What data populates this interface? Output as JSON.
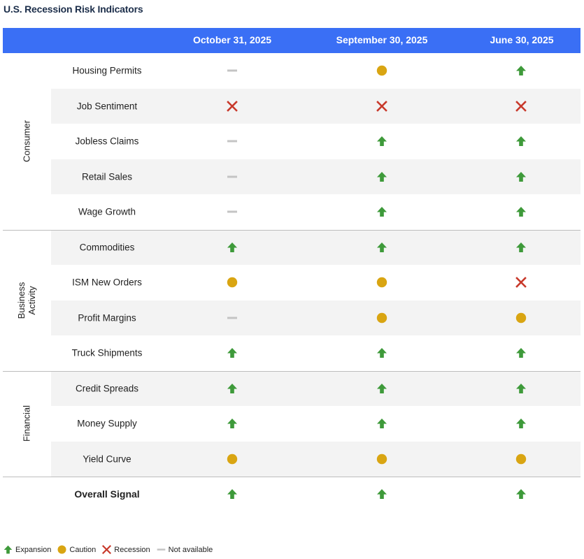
{
  "title": "U.S. Recession Risk Indicators",
  "columns": [
    "October 31, 2025",
    "September 30, 2025",
    "June 30, 2025"
  ],
  "colors": {
    "header": "#3a6ff5",
    "expansion": "#3e9a3a",
    "caution": "#d9a512",
    "recession": "#c8392b",
    "not_available": "#c4c4c4",
    "stripe": "#f3f3f3"
  },
  "chart_data": {
    "type": "table",
    "title": "U.S. Recession Risk Indicators",
    "columns": [
      "October 31, 2025",
      "September 30, 2025",
      "June 30, 2025"
    ],
    "groups": [
      {
        "category": "Consumer",
        "rows": [
          {
            "label": "Housing Permits",
            "values": [
              "na",
              "caution",
              "expansion"
            ]
          },
          {
            "label": "Job Sentiment",
            "values": [
              "recession",
              "recession",
              "recession"
            ]
          },
          {
            "label": "Jobless Claims",
            "values": [
              "na",
              "expansion",
              "expansion"
            ]
          },
          {
            "label": "Retail Sales",
            "values": [
              "na",
              "expansion",
              "expansion"
            ]
          },
          {
            "label": "Wage Growth",
            "values": [
              "na",
              "expansion",
              "expansion"
            ]
          }
        ]
      },
      {
        "category": "Business Activity",
        "rows": [
          {
            "label": "Commodities",
            "values": [
              "expansion",
              "expansion",
              "expansion"
            ]
          },
          {
            "label": "ISM New Orders",
            "values": [
              "caution",
              "caution",
              "recession"
            ]
          },
          {
            "label": "Profit Margins",
            "values": [
              "na",
              "caution",
              "caution"
            ]
          },
          {
            "label": "Truck Shipments",
            "values": [
              "expansion",
              "expansion",
              "expansion"
            ]
          }
        ]
      },
      {
        "category": "Financial",
        "rows": [
          {
            "label": "Credit Spreads",
            "values": [
              "expansion",
              "expansion",
              "expansion"
            ]
          },
          {
            "label": "Money Supply",
            "values": [
              "expansion",
              "expansion",
              "expansion"
            ]
          },
          {
            "label": "Yield Curve",
            "values": [
              "caution",
              "caution",
              "caution"
            ]
          }
        ]
      }
    ],
    "overall": {
      "label": "Overall Signal",
      "values": [
        "expansion",
        "expansion",
        "expansion"
      ]
    }
  },
  "legend": [
    {
      "key": "expansion",
      "label": "Expansion"
    },
    {
      "key": "caution",
      "label": "Caution"
    },
    {
      "key": "recession",
      "label": "Recession"
    },
    {
      "key": "na",
      "label": "Not available"
    }
  ]
}
